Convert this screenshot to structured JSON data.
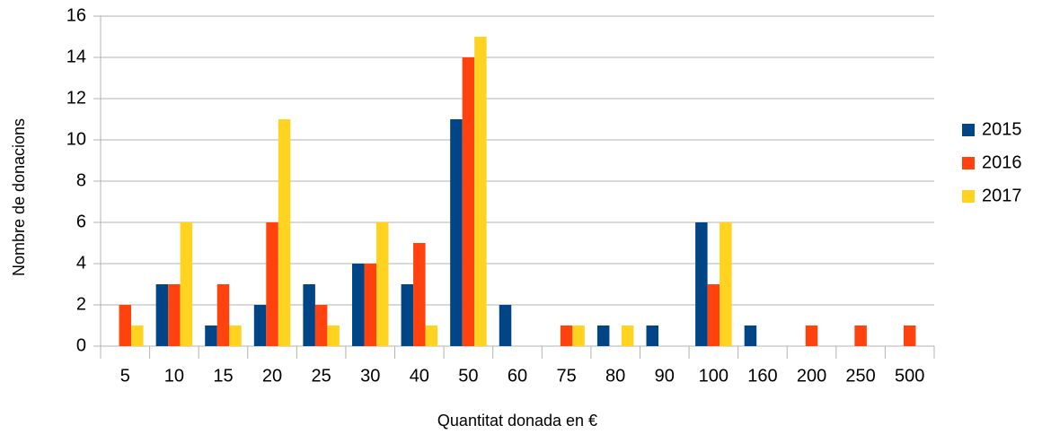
{
  "chart_data": {
    "type": "bar",
    "x_label": "Quantitat donada en €",
    "y_label": "Nombre de donacions",
    "categories": [
      "5",
      "10",
      "15",
      "20",
      "25",
      "30",
      "40",
      "50",
      "60",
      "75",
      "80",
      "90",
      "100",
      "160",
      "200",
      "250",
      "500"
    ],
    "series": [
      {
        "name": "2015",
        "color": "#004586",
        "values": [
          0,
          3,
          1,
          2,
          3,
          4,
          3,
          11,
          2,
          0,
          1,
          1,
          6,
          1,
          0,
          0,
          0
        ]
      },
      {
        "name": "2016",
        "color": "#ff420e",
        "values": [
          2,
          3,
          3,
          6,
          2,
          4,
          5,
          14,
          0,
          1,
          0,
          0,
          3,
          0,
          1,
          1,
          1
        ]
      },
      {
        "name": "2017",
        "color": "#ffd320",
        "values": [
          1,
          6,
          1,
          11,
          1,
          6,
          1,
          15,
          0,
          1,
          1,
          0,
          6,
          0,
          0,
          0,
          0
        ]
      }
    ],
    "ylim": [
      0,
      16
    ],
    "yticks": [
      0,
      2,
      4,
      6,
      8,
      10,
      12,
      14,
      16
    ],
    "grid": true,
    "legend": "right"
  }
}
